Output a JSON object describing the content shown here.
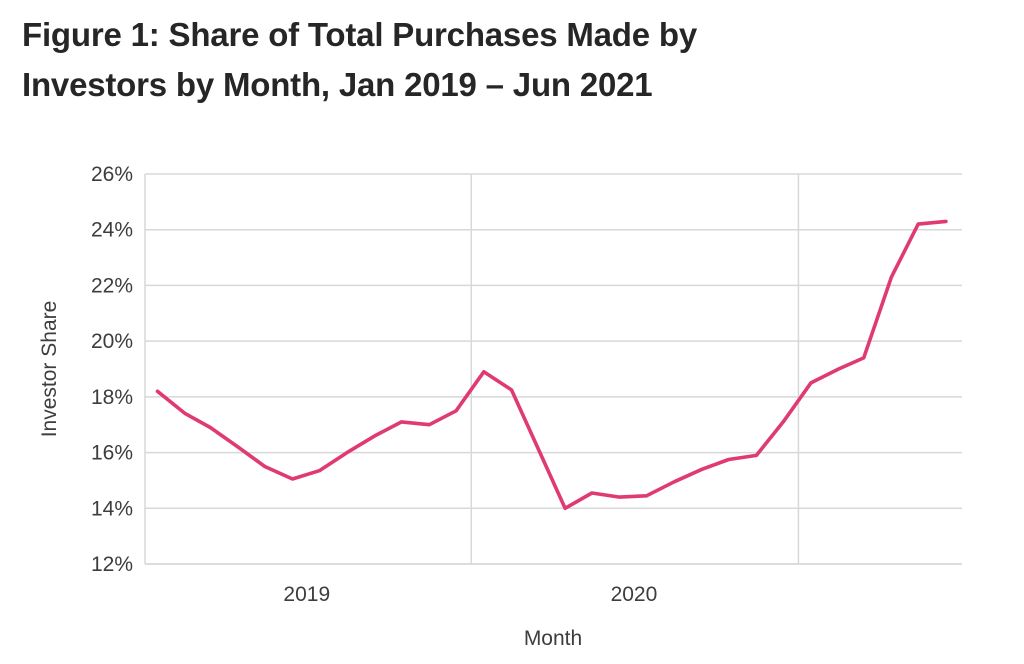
{
  "page": {
    "background": "#ffffff"
  },
  "header": {
    "title_line1": "Figure 1: Share of Total Purchases Made by",
    "title_line2": "Investors by Month, Jan 2019 – Jun 2021",
    "title_color": "#262626"
  },
  "chart_data": {
    "type": "line",
    "title": "Figure 1: Share of Total Purchases Made by Investors by Month, Jan 2019 – Jun 2021",
    "xlabel": "Month",
    "ylabel": "Investor Share",
    "unit": "%",
    "x": [
      "2019-01",
      "2019-02",
      "2019-03",
      "2019-04",
      "2019-05",
      "2019-06",
      "2019-07",
      "2019-08",
      "2019-09",
      "2019-10",
      "2019-11",
      "2019-12",
      "2020-01",
      "2020-02",
      "2020-03",
      "2020-04",
      "2020-05",
      "2020-06",
      "2020-07",
      "2020-08",
      "2020-09",
      "2020-10",
      "2020-11",
      "2020-12",
      "2021-01",
      "2021-02",
      "2021-03",
      "2021-04",
      "2021-05",
      "2021-06"
    ],
    "values": [
      18.2,
      17.4,
      16.9,
      16.2,
      15.5,
      15.05,
      15.35,
      16.0,
      16.6,
      17.1,
      17.0,
      17.5,
      18.9,
      18.25,
      16.2,
      14.0,
      14.55,
      14.4,
      14.45,
      14.95,
      15.4,
      15.75,
      15.9,
      17.1,
      18.5,
      19.0,
      19.4,
      22.3,
      24.2,
      24.3
    ],
    "ylim": [
      12,
      26
    ],
    "ytick_values": [
      12,
      14,
      16,
      18,
      20,
      22,
      24,
      26
    ],
    "ytick_labels": [
      "12%",
      "14%",
      "16%",
      "18%",
      "20%",
      "22%",
      "24%",
      "26%"
    ],
    "x_domain": [
      "2019-01-01",
      "2021-07-03"
    ],
    "x_gridline_dates": [
      "2020-01-01",
      "2021-01-01"
    ],
    "x_axis_start_date": "2019-01-01",
    "xtick_labels": [
      {
        "label": "2019",
        "center_date": "2019-07-01"
      },
      {
        "label": "2020",
        "center_date": "2020-07-01"
      }
    ],
    "point_day_of_month": 15,
    "grid": "on",
    "legend": "none",
    "line_color": "#e03a72",
    "gridline_color": "#d8d8d8",
    "axis_text_color": "#3d3d3d"
  }
}
